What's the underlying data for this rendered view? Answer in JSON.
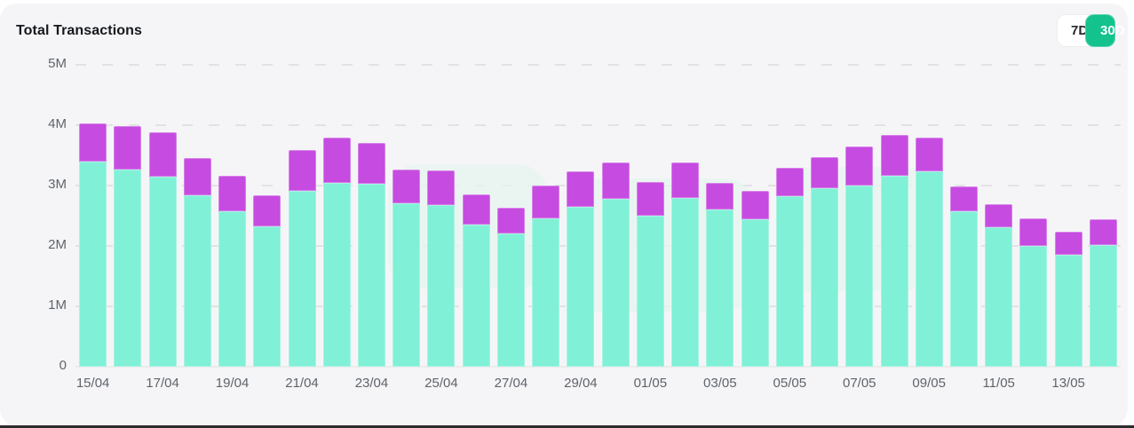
{
  "header": {
    "title": "Total Transactions"
  },
  "range_toggle": {
    "options": [
      {
        "label": "7D",
        "active": false
      },
      {
        "label": "30D",
        "active": true
      }
    ]
  },
  "colors": {
    "accent_green": "#14c28e",
    "bar_bottom_teal": "#80f0d6",
    "bar_top_magenta": "#c64be0",
    "card_background": "#f5f5f7",
    "gridline": "#e2e2e5",
    "axis_text": "#5f646b",
    "title_text": "#15181d",
    "watermark": "#e6f4ef",
    "bottom_edge": "#2b2b2e"
  },
  "chart_data": {
    "type": "bar",
    "stacked": true,
    "title": "Total Transactions",
    "xlabel": "",
    "ylabel": "",
    "unit": "millions of transactions",
    "ylim_millions": [
      0,
      5
    ],
    "yticks": [
      "0",
      "1M",
      "2M",
      "3M",
      "4M",
      "5M"
    ],
    "grid": "dashed horizontal",
    "legend": "none",
    "x": [
      "15/04",
      "16/04",
      "17/04",
      "18/04",
      "19/04",
      "20/04",
      "21/04",
      "22/04",
      "23/04",
      "24/04",
      "25/04",
      "26/04",
      "27/04",
      "28/04",
      "29/04",
      "30/04",
      "01/05",
      "02/05",
      "03/05",
      "04/05",
      "05/05",
      "06/05",
      "07/05",
      "08/05",
      "09/05",
      "10/05",
      "11/05",
      "12/05",
      "13/05",
      "14/05"
    ],
    "x_tick_labels_shown": [
      "15/04",
      "17/04",
      "19/04",
      "21/04",
      "23/04",
      "25/04",
      "27/04",
      "29/04",
      "01/05",
      "03/05",
      "05/05",
      "07/05",
      "09/05",
      "11/05",
      "13/05"
    ],
    "series": [
      {
        "name": "segment-bottom",
        "color": "#80f0d6",
        "values_millions": [
          3.4,
          3.27,
          3.14,
          2.84,
          2.58,
          2.33,
          2.91,
          3.05,
          3.03,
          2.7,
          2.68,
          2.36,
          2.2,
          2.46,
          2.65,
          2.78,
          2.5,
          2.79,
          2.6,
          2.44,
          2.82,
          2.96,
          3.0,
          3.16,
          3.24,
          2.58,
          2.31,
          2.0,
          1.85,
          2.02
        ]
      },
      {
        "name": "segment-top",
        "color": "#c64be0",
        "values_millions": [
          0.63,
          0.71,
          0.74,
          0.62,
          0.58,
          0.51,
          0.68,
          0.74,
          0.68,
          0.57,
          0.57,
          0.49,
          0.43,
          0.54,
          0.58,
          0.6,
          0.56,
          0.59,
          0.45,
          0.47,
          0.48,
          0.51,
          0.65,
          0.68,
          0.55,
          0.41,
          0.38,
          0.46,
          0.38,
          0.42
        ]
      }
    ],
    "totals_millions": [
      4.03,
      3.98,
      3.88,
      3.46,
      3.16,
      2.84,
      3.59,
      3.79,
      3.71,
      3.27,
      3.25,
      2.85,
      2.63,
      3.0,
      3.23,
      3.38,
      3.06,
      3.38,
      3.05,
      2.91,
      3.3,
      3.47,
      3.65,
      3.84,
      3.79,
      2.99,
      2.69,
      2.46,
      2.23,
      2.44
    ]
  }
}
